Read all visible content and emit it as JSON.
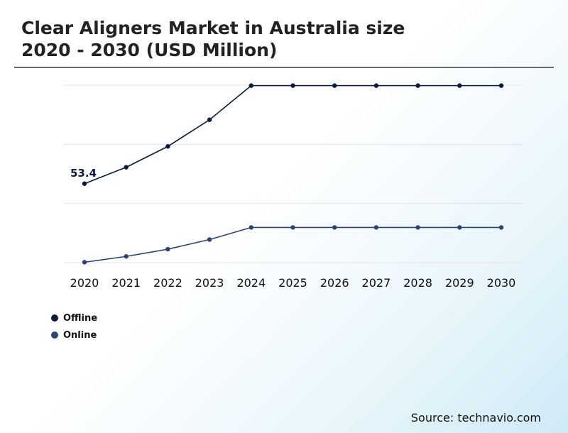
{
  "title": {
    "line1": "Clear Aligners Market in Australia size",
    "line2": "2020 - 2030 (USD Million)"
  },
  "source": "Source: technavio.com",
  "chart_data": {
    "type": "line",
    "x": [
      "2020",
      "2021",
      "2022",
      "2023",
      "2024",
      "2025",
      "2026",
      "2027",
      "2028",
      "2029",
      "2030"
    ],
    "series": [
      {
        "name": "Offline",
        "color": "#0b1a3d",
        "values": [
          53.4,
          64.5,
          78.6,
          96.6,
          119.7,
          119.7,
          119.7,
          119.7,
          119.7,
          119.7,
          119.7
        ]
      },
      {
        "name": "Online",
        "color": "#2f4371",
        "values": [
          0.3,
          4.2,
          9.1,
          15.6,
          23.8,
          23.8,
          23.8,
          23.8,
          23.8,
          23.8,
          23.8
        ]
      }
    ],
    "annotations": [
      {
        "series": 0,
        "index": 0,
        "label": "53.4"
      }
    ],
    "ylim": [
      0,
      120
    ],
    "grid": true,
    "legend": "bottom-left"
  }
}
